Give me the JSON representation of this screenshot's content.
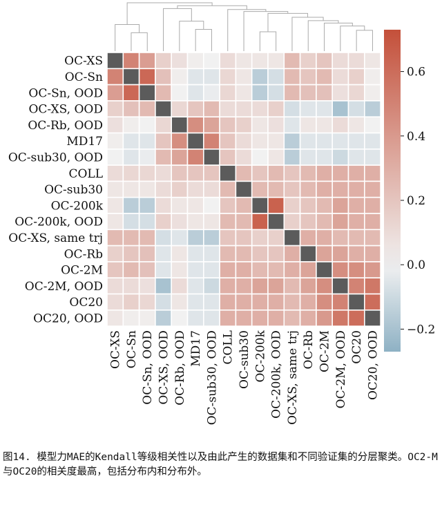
{
  "chart_data": {
    "type": "heatmap",
    "labels": [
      "OC-XS",
      "OC-Sn",
      "OC-Sn, OOD",
      "OC-XS, OOD",
      "OC-Rb, OOD",
      "MD17",
      "OC-sub30, OOD",
      "COLL",
      "OC-sub30",
      "OC-200k",
      "OC-200k, OOD",
      "OC-XS, same trj",
      "OC-Rb",
      "OC-2M",
      "OC-2M, OOD",
      "OC20",
      "OC20, OOD"
    ],
    "matrix": [
      [
        null,
        0.5,
        0.38,
        0.15,
        0.08,
        0.02,
        0.0,
        0.1,
        0.05,
        0.05,
        0.05,
        0.25,
        0.15,
        0.2,
        0.1,
        0.1,
        0.05
      ],
      [
        0.5,
        null,
        0.62,
        0.22,
        0.02,
        -0.05,
        -0.05,
        0.12,
        0.05,
        -0.15,
        -0.08,
        0.25,
        0.2,
        0.25,
        0.1,
        0.15,
        0.02
      ],
      [
        0.38,
        0.62,
        null,
        0.25,
        0.0,
        -0.05,
        -0.02,
        0.12,
        0.05,
        -0.15,
        -0.08,
        0.25,
        0.22,
        0.22,
        0.08,
        0.12,
        0.02
      ],
      [
        0.15,
        0.22,
        0.25,
        null,
        0.12,
        0.2,
        0.25,
        0.1,
        0.1,
        0.1,
        0.15,
        -0.08,
        -0.05,
        -0.05,
        -0.2,
        -0.08,
        -0.15
      ],
      [
        0.08,
        0.02,
        0.0,
        0.12,
        null,
        0.45,
        0.35,
        0.2,
        0.15,
        0.05,
        0.08,
        -0.05,
        0.05,
        0.05,
        0.1,
        0.05,
        0.0
      ],
      [
        0.02,
        -0.05,
        -0.05,
        0.2,
        0.45,
        null,
        0.5,
        0.2,
        0.1,
        0.05,
        0.05,
        -0.15,
        -0.05,
        -0.05,
        -0.05,
        -0.05,
        -0.05
      ],
      [
        0.0,
        -0.05,
        -0.02,
        0.25,
        0.35,
        0.5,
        null,
        0.2,
        0.1,
        0.0,
        0.05,
        -0.15,
        -0.05,
        -0.05,
        -0.1,
        -0.05,
        -0.05
      ],
      [
        0.1,
        0.12,
        0.12,
        0.1,
        0.2,
        0.2,
        0.2,
        null,
        0.25,
        0.2,
        0.25,
        0.2,
        0.25,
        0.3,
        0.3,
        0.3,
        0.3
      ],
      [
        0.05,
        0.05,
        0.05,
        0.1,
        0.15,
        0.1,
        0.1,
        0.25,
        null,
        0.25,
        0.25,
        0.2,
        0.25,
        0.3,
        0.3,
        0.3,
        0.3
      ],
      [
        0.05,
        -0.15,
        -0.15,
        0.1,
        0.05,
        0.05,
        0.0,
        0.2,
        0.25,
        null,
        0.65,
        0.15,
        0.2,
        0.25,
        0.35,
        0.3,
        0.3
      ],
      [
        0.05,
        -0.08,
        -0.08,
        0.15,
        0.08,
        0.05,
        0.05,
        0.25,
        0.25,
        0.65,
        null,
        0.15,
        0.2,
        0.25,
        0.35,
        0.3,
        0.3
      ],
      [
        0.25,
        0.25,
        0.25,
        -0.08,
        -0.05,
        -0.15,
        -0.15,
        0.2,
        0.2,
        0.15,
        0.15,
        null,
        0.3,
        0.3,
        0.25,
        0.25,
        0.25
      ],
      [
        0.15,
        0.2,
        0.22,
        -0.05,
        0.05,
        -0.05,
        -0.05,
        0.25,
        0.25,
        0.2,
        0.2,
        0.3,
        null,
        0.35,
        0.35,
        0.3,
        0.3
      ],
      [
        0.2,
        0.25,
        0.22,
        -0.05,
        0.05,
        -0.05,
        -0.05,
        0.3,
        0.3,
        0.25,
        0.25,
        0.3,
        0.35,
        null,
        0.45,
        0.45,
        0.4
      ],
      [
        0.1,
        0.1,
        0.08,
        -0.2,
        0.1,
        -0.05,
        -0.1,
        0.3,
        0.3,
        0.35,
        0.35,
        0.25,
        0.35,
        0.45,
        null,
        0.5,
        0.55
      ],
      [
        0.1,
        0.15,
        0.12,
        -0.08,
        0.05,
        -0.05,
        -0.05,
        0.3,
        0.3,
        0.3,
        0.3,
        0.25,
        0.3,
        0.45,
        0.5,
        null,
        0.6
      ],
      [
        0.05,
        0.02,
        0.02,
        -0.15,
        0.0,
        -0.05,
        -0.05,
        0.3,
        0.3,
        0.3,
        0.3,
        0.25,
        0.3,
        0.4,
        0.55,
        0.6,
        null
      ]
    ],
    "colorbar": {
      "vmin": -0.27,
      "vmax": 0.73,
      "ticks": [
        0.6,
        0.4,
        0.2,
        0.0,
        -0.2
      ],
      "tick_labels": [
        "0.6",
        "0.4",
        "0.2",
        "0.0",
        "−0.2"
      ]
    },
    "colors": {
      "low": "#8eb1c4",
      "mid": "#f1f1f1",
      "high": "#c4503a",
      "diagonal": "#5b5b5b",
      "dendrogram": "#aaaaaa"
    }
  },
  "caption": "图14. 模型力MAE的Kendall等级相关性以及由此产生的数据集和不同验证集的分层聚类。OC2-M与OC20的相关度最高，包括分布内和分布外。"
}
